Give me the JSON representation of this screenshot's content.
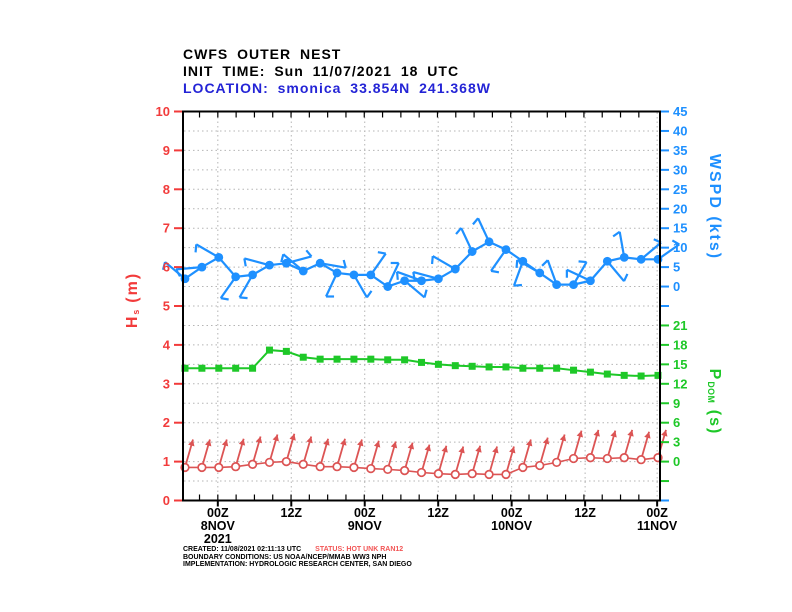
{
  "header": {
    "line1": "CWFS OUTER NEST",
    "line2": "INIT TIME: Sun 11/07/2021 18 UTC",
    "line3": "LOCATION: smonica 33.854N 241.368W"
  },
  "axes": {
    "hs": {
      "title_main": "H",
      "title_sub": "s",
      "title_unit": " (m)",
      "ticks": [
        "10",
        "9",
        "8",
        "7",
        "6",
        "5",
        "4",
        "3",
        "2",
        "1",
        "0"
      ],
      "color": "#f23b3b"
    },
    "wspd": {
      "title_main": "WSPD",
      "title_unit": " (kts)",
      "ticks": [
        "45",
        "40",
        "35",
        "30",
        "25",
        "20",
        "15",
        "10",
        "5",
        "0"
      ],
      "color": "#1e90ff"
    },
    "pdom": {
      "title_main": "P",
      "title_sub": "DOM",
      "title_unit": " (s)",
      "ticks": [
        "21",
        "18",
        "15",
        "12",
        "9",
        "6",
        "3",
        "0"
      ],
      "color": "#1ec828"
    },
    "time": {
      "ticks": [
        {
          "frac": 0.073,
          "lines": [
            "00Z",
            "8NOV",
            "2021"
          ]
        },
        {
          "frac": 0.227,
          "lines": [
            "12Z"
          ]
        },
        {
          "frac": 0.381,
          "lines": [
            "00Z",
            "9NOV"
          ]
        },
        {
          "frac": 0.535,
          "lines": [
            "12Z"
          ]
        },
        {
          "frac": 0.689,
          "lines": [
            "00Z",
            "10NOV"
          ]
        },
        {
          "frac": 0.843,
          "lines": [
            "12Z"
          ]
        },
        {
          "frac": 0.994,
          "lines": [
            "00Z",
            "11NOV"
          ]
        }
      ]
    }
  },
  "chart_data": {
    "type": "line",
    "title": "CWFS OUTER NEST point forecast: wind speed, dominant period, significant wave height",
    "x_hours_after_init": [
      0,
      3,
      6,
      9,
      12,
      15,
      18,
      21,
      24,
      27,
      30,
      33,
      36,
      39,
      42,
      45,
      48,
      51,
      54,
      57,
      60,
      63,
      66,
      69,
      72,
      75,
      78,
      81,
      84
    ],
    "series": [
      {
        "name": "WSPD (kts)",
        "axis": "wspd",
        "marker": "dot-with-wind-barb",
        "color": "#1e90ff",
        "values": [
          2,
          5,
          7.5,
          2.5,
          3,
          5.5,
          6,
          4,
          6,
          3.5,
          3,
          3,
          0,
          1.5,
          1.5,
          2,
          4.5,
          9,
          11.5,
          9.5,
          6.5,
          3.5,
          0.5,
          0.5,
          1.5,
          6.5,
          7.5,
          7,
          7
        ],
        "barb_dir_deg": [
          140,
          185,
          150,
          235,
          240,
          165,
          15,
          140,
          350,
          245,
          300,
          55,
          65,
          320,
          160,
          165,
          150,
          115,
          115,
          235,
          250,
          150,
          110,
          60,
          155,
          310,
          100,
          40,
          35
        ]
      },
      {
        "name": "PDOM (s)",
        "axis": "pdom",
        "marker": "square",
        "color": "#1ec828",
        "values": [
          14.4,
          14.4,
          14.4,
          14.4,
          14.4,
          17.2,
          17.0,
          16.1,
          15.8,
          15.8,
          15.8,
          15.8,
          15.7,
          15.7,
          15.3,
          15.0,
          14.8,
          14.7,
          14.6,
          14.6,
          14.4,
          14.4,
          14.4,
          14.1,
          13.8,
          13.5,
          13.3,
          13.2,
          13.3
        ]
      },
      {
        "name": "Hs (m)",
        "axis": "hs",
        "marker": "open-circle-with-arrow",
        "color": "#dc5454",
        "values": [
          0.85,
          0.85,
          0.85,
          0.87,
          0.93,
          0.98,
          1.0,
          0.93,
          0.87,
          0.87,
          0.85,
          0.82,
          0.8,
          0.77,
          0.72,
          0.69,
          0.67,
          0.69,
          0.67,
          0.67,
          0.85,
          0.9,
          0.98,
          1.08,
          1.1,
          1.08,
          1.1,
          1.05,
          1.1
        ],
        "arrow_dir_deg": 74
      }
    ],
    "axis_ranges": {
      "hs": [
        0,
        10
      ],
      "wspd": [
        0,
        45
      ],
      "pdom": [
        0,
        21
      ]
    },
    "grid": "dotted, horizontal every 0.5 m equivalent, vertical at 12-hour ticks",
    "legend_position": "none"
  },
  "footer": {
    "created": "CREATED: 11/08/2021 02:11:13 UTC",
    "status": "STATUS: HOT UNK RAN12",
    "boundary": "BOUNDARY CONDITIONS: US NOAA/NCEP/MMAB WW3 NPH",
    "implementation": "IMPLEMENTATION: HYDROLOGIC RESEARCH CENTER, SAN DIEGO"
  },
  "colors": {
    "wind_blue": "#1e90ff",
    "period_green": "#1ec828",
    "wave_red": "#dc5454",
    "axis_red": "#f23b3b",
    "location_blue": "#2424d6",
    "status_red": "#f25555",
    "grid_gray": "#b5b5b5",
    "frame_black": "#000000"
  }
}
